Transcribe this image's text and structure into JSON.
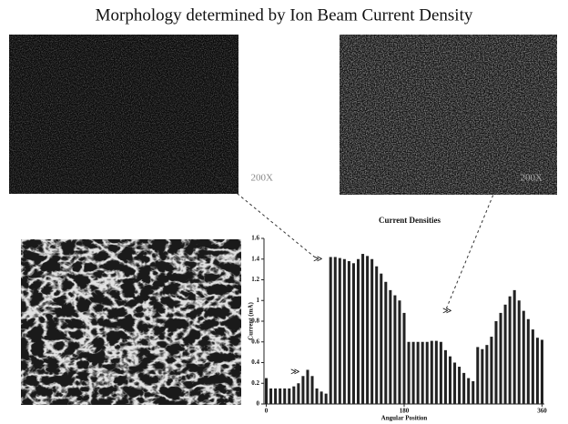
{
  "heading": "Morphology determined by Ion Beam Current Density",
  "images": [
    {
      "label": "200X"
    },
    {
      "label": "200X"
    }
  ],
  "chart_data": {
    "type": "bar",
    "title": "Current Densities",
    "x_label": "Angular Position",
    "y_label": "Current (mA)",
    "x": [
      0,
      6,
      12,
      18,
      24,
      30,
      36,
      42,
      48,
      54,
      60,
      66,
      72,
      78,
      84,
      90,
      96,
      102,
      108,
      114,
      120,
      126,
      132,
      138,
      144,
      150,
      156,
      162,
      168,
      174,
      180,
      186,
      192,
      198,
      204,
      210,
      216,
      222,
      228,
      234,
      240,
      246,
      252,
      258,
      264,
      270,
      276,
      282,
      288,
      294,
      300,
      306,
      312,
      318,
      324,
      330,
      336,
      342,
      348,
      354,
      360
    ],
    "values": [
      0.25,
      0.15,
      0.15,
      0.15,
      0.15,
      0.15,
      0.17,
      0.2,
      0.27,
      0.33,
      0.27,
      0.15,
      0.12,
      0.1,
      1.42,
      1.42,
      1.41,
      1.4,
      1.38,
      1.36,
      1.4,
      1.45,
      1.43,
      1.4,
      1.33,
      1.26,
      1.18,
      1.1,
      1.05,
      1.0,
      0.88,
      0.6,
      0.6,
      0.6,
      0.6,
      0.6,
      0.61,
      0.61,
      0.6,
      0.52,
      0.46,
      0.4,
      0.36,
      0.3,
      0.25,
      0.22,
      0.55,
      0.53,
      0.57,
      0.65,
      0.8,
      0.88,
      0.96,
      1.04,
      1.1,
      1.0,
      0.9,
      0.82,
      0.72,
      0.64,
      0.62
    ],
    "color": "#222222",
    "xlim": [
      -3,
      363
    ],
    "xticks": [
      0,
      180,
      360
    ],
    "ylim": [
      0,
      1.6
    ],
    "yticks": [
      0,
      0.2,
      0.4,
      0.6,
      0.8,
      1,
      1.2,
      1.4,
      1.6
    ]
  }
}
